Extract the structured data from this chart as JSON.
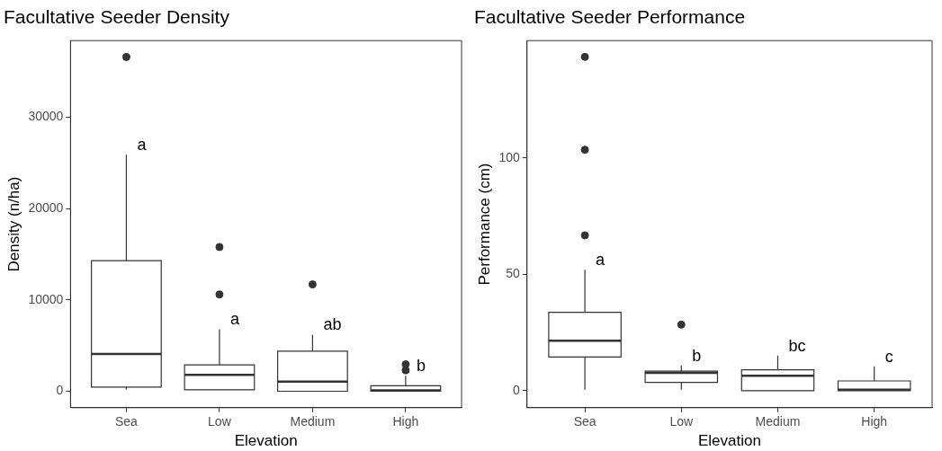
{
  "chart_data": [
    {
      "type": "box",
      "title": "Facultative Seeder Density",
      "xlabel": "Elevation",
      "ylabel": "Density (n/ha)",
      "categories": [
        "Sea",
        "Low",
        "Medium",
        "High"
      ],
      "color": "#333333",
      "grid": false,
      "ylim": [
        -1800,
        38400
      ],
      "yticks": [
        0,
        10000,
        20000,
        30000
      ],
      "boxes": [
        {
          "low": 170,
          "q1": 450,
          "median": 4090,
          "q3": 14300,
          "high": 25900,
          "outliers": [
            36600
          ]
        },
        {
          "low": 170,
          "q1": 170,
          "median": 1800,
          "q3": 2900,
          "high": 6800,
          "outliers": [
            15800,
            10600
          ]
        },
        {
          "low": 0,
          "q1": 0,
          "median": 1050,
          "q3": 4400,
          "high": 6200,
          "outliers": [
            11700
          ]
        },
        {
          "low": 0,
          "q1": 0,
          "median": 100,
          "q3": 600,
          "high": 1700,
          "outliers": [
            2950,
            2300
          ]
        }
      ],
      "annotations": [
        "a",
        "a",
        "ab",
        "b"
      ]
    },
    {
      "type": "box",
      "title": "Facultative Seeder Performance",
      "xlabel": "Elevation",
      "ylabel": "Performance (cm)",
      "categories": [
        "Sea",
        "Low",
        "Medium",
        "High"
      ],
      "color": "#333333",
      "grid": false,
      "ylim": [
        -7.3,
        150.5
      ],
      "yticks": [
        0,
        50,
        100
      ],
      "boxes": [
        {
          "low": 0.4,
          "q1": 14.5,
          "median": 21.5,
          "q3": 33.7,
          "high": 52,
          "outliers": [
            143.5,
            103.6,
            66.8
          ]
        },
        {
          "low": 0.4,
          "q1": 3.6,
          "median": 7.7,
          "q3": 8.4,
          "high": 10.9,
          "outliers": [
            28.4
          ]
        },
        {
          "low": 0,
          "q1": 0,
          "median": 6.4,
          "q3": 9,
          "high": 15.1
        },
        {
          "low": 0,
          "q1": 0,
          "median": 0.4,
          "q3": 4.2,
          "high": 10.5
        }
      ],
      "annotations": [
        "a",
        "b",
        "bc",
        "c"
      ]
    }
  ]
}
